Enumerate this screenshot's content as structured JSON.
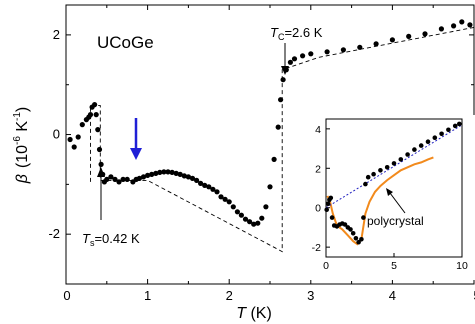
{
  "chart_data": [
    {
      "type": "scatter",
      "annotation_title": "UCoGe",
      "xlabel": {
        "var": "T",
        "unit": " (K)"
      },
      "ylabel": {
        "var": "β",
        "pre": "(10",
        "exp": "-6",
        "mid": " K",
        "exp2": "-1",
        "post": ")"
      },
      "xlim": [
        0,
        5
      ],
      "ylim": [
        -3,
        2.6
      ],
      "x_ticks": [
        0,
        1,
        2,
        3,
        4,
        5
      ],
      "x_tick_labels": [
        "0",
        "1",
        "2",
        "3",
        "4",
        "5"
      ],
      "y_ticks": [
        -2,
        0,
        2
      ],
      "y_tick_labels": [
        "-2",
        "0",
        "2"
      ],
      "annotations": {
        "tc": {
          "sym": "T",
          "sub": "C",
          "rest": "=2.6 K",
          "x": 2.6,
          "y": 1.35
        },
        "ts": {
          "sym": "T",
          "sub": "s",
          "rest": "=0.42 K",
          "x": 0.42,
          "y": -0.95
        },
        "blue_arrow_x": 0.8
      },
      "series": [
        {
          "points": [
            [
              0.05,
              -0.1
            ],
            [
              0.1,
              -0.25
            ],
            [
              0.15,
              -0.05
            ],
            [
              0.2,
              0.2
            ],
            [
              0.25,
              0.3
            ],
            [
              0.28,
              0.35
            ],
            [
              0.3,
              0.4
            ],
            [
              0.32,
              0.55
            ],
            [
              0.35,
              0.6
            ],
            [
              0.37,
              0.4
            ],
            [
              0.39,
              0.1
            ],
            [
              0.41,
              -0.3
            ],
            [
              0.43,
              -0.6
            ],
            [
              0.45,
              -0.8
            ],
            [
              0.47,
              -0.95
            ],
            [
              0.5,
              -0.9
            ],
            [
              0.55,
              -0.85
            ],
            [
              0.6,
              -0.9
            ],
            [
              0.65,
              -0.95
            ],
            [
              0.7,
              -0.9
            ],
            [
              0.75,
              -0.9
            ],
            [
              0.82,
              -0.95
            ],
            [
              0.86,
              -0.9
            ],
            [
              0.9,
              -0.88
            ],
            [
              0.95,
              -0.85
            ],
            [
              1.0,
              -0.82
            ],
            [
              1.05,
              -0.8
            ],
            [
              1.1,
              -0.78
            ],
            [
              1.15,
              -0.76
            ],
            [
              1.2,
              -0.75
            ],
            [
              1.25,
              -0.75
            ],
            [
              1.3,
              -0.76
            ],
            [
              1.35,
              -0.78
            ],
            [
              1.4,
              -0.8
            ],
            [
              1.45,
              -0.83
            ],
            [
              1.5,
              -0.85
            ],
            [
              1.55,
              -0.88
            ],
            [
              1.6,
              -0.92
            ],
            [
              1.65,
              -0.98
            ],
            [
              1.7,
              -1.02
            ],
            [
              1.75,
              -1.05
            ],
            [
              1.8,
              -1.1
            ],
            [
              1.85,
              -1.15
            ],
            [
              1.9,
              -1.25
            ],
            [
              1.95,
              -1.3
            ],
            [
              2.0,
              -1.35
            ],
            [
              2.05,
              -1.45
            ],
            [
              2.1,
              -1.55
            ],
            [
              2.15,
              -1.62
            ],
            [
              2.2,
              -1.7
            ],
            [
              2.25,
              -1.75
            ],
            [
              2.3,
              -1.8
            ],
            [
              2.35,
              -1.78
            ],
            [
              2.4,
              -1.68
            ],
            [
              2.45,
              -1.45
            ],
            [
              2.5,
              -1.05
            ],
            [
              2.55,
              -0.5
            ],
            [
              2.6,
              0.15
            ],
            [
              2.63,
              0.7
            ],
            [
              2.66,
              1.1
            ],
            [
              2.7,
              1.3
            ],
            [
              2.75,
              1.45
            ],
            [
              2.8,
              1.52
            ],
            [
              2.9,
              1.58
            ],
            [
              3.0,
              1.62
            ],
            [
              3.2,
              1.66
            ],
            [
              3.4,
              1.7
            ],
            [
              3.6,
              1.75
            ],
            [
              3.8,
              1.82
            ],
            [
              4.0,
              1.9
            ],
            [
              4.2,
              1.97
            ],
            [
              4.4,
              2.02
            ],
            [
              4.6,
              2.12
            ],
            [
              4.75,
              2.18
            ],
            [
              4.85,
              2.26
            ],
            [
              4.95,
              2.2
            ]
          ]
        }
      ],
      "dashed_guides": [
        [
          [
            0.3,
            -0.95
          ],
          [
            0.3,
            0.58
          ],
          [
            0.42,
            0.58
          ],
          [
            0.42,
            -0.92
          ],
          [
            1.0,
            -0.92
          ],
          [
            2.65,
            -2.35
          ],
          [
            2.65,
            1.3
          ],
          [
            3.1,
            1.55
          ],
          [
            5.0,
            2.15
          ]
        ]
      ]
    },
    {
      "type": "scatter",
      "role": "inset",
      "xlim": [
        0,
        10
      ],
      "ylim": [
        -2.5,
        4.5
      ],
      "x_ticks": [
        0,
        5,
        10
      ],
      "x_tick_labels": [
        "0",
        "5",
        "10"
      ],
      "y_ticks": [
        -2,
        0,
        2,
        4
      ],
      "y_tick_labels": [
        "-2",
        "0",
        "2",
        "4"
      ],
      "annotation_text": "polycrystal",
      "series": [
        {
          "kind": "points",
          "points": [
            [
              0.05,
              -0.1
            ],
            [
              0.15,
              0.2
            ],
            [
              0.25,
              0.4
            ],
            [
              0.35,
              0.5
            ],
            [
              0.45,
              -0.5
            ],
            [
              0.6,
              -0.9
            ],
            [
              0.8,
              -0.95
            ],
            [
              1.0,
              -0.85
            ],
            [
              1.2,
              -0.8
            ],
            [
              1.4,
              -0.85
            ],
            [
              1.6,
              -1.0
            ],
            [
              1.8,
              -1.1
            ],
            [
              2.0,
              -1.3
            ],
            [
              2.2,
              -1.55
            ],
            [
              2.4,
              -1.75
            ],
            [
              2.6,
              -1.6
            ],
            [
              2.75,
              -0.5
            ],
            [
              2.9,
              1.2
            ],
            [
              3.1,
              1.55
            ],
            [
              3.5,
              1.7
            ],
            [
              4.0,
              1.9
            ],
            [
              4.5,
              2.05
            ],
            [
              5.0,
              2.25
            ],
            [
              5.5,
              2.45
            ],
            [
              6.0,
              2.7
            ],
            [
              6.5,
              2.95
            ],
            [
              7.0,
              3.15
            ],
            [
              7.5,
              3.35
            ],
            [
              8.0,
              3.55
            ],
            [
              8.5,
              3.75
            ],
            [
              9.0,
              3.95
            ],
            [
              9.5,
              4.15
            ],
            [
              9.8,
              4.25
            ]
          ]
        },
        {
          "kind": "line",
          "color": "#f28a1c",
          "points": [
            [
              0.1,
              0.6
            ],
            [
              0.3,
              0.3
            ],
            [
              0.5,
              -0.3
            ],
            [
              0.8,
              -0.9
            ],
            [
              1.2,
              -1.1
            ],
            [
              1.6,
              -1.4
            ],
            [
              2.0,
              -1.7
            ],
            [
              2.3,
              -1.85
            ],
            [
              2.6,
              -1.6
            ],
            [
              2.9,
              -0.3
            ],
            [
              3.2,
              0.3
            ],
            [
              3.6,
              0.8
            ],
            [
              4.0,
              1.1
            ],
            [
              4.5,
              1.4
            ],
            [
              5.0,
              1.65
            ],
            [
              5.5,
              1.9
            ],
            [
              6.0,
              2.05
            ],
            [
              6.5,
              2.2
            ],
            [
              7.0,
              2.3
            ],
            [
              7.5,
              2.45
            ],
            [
              7.9,
              2.55
            ]
          ]
        },
        {
          "kind": "dashed-fit",
          "color": "#2020c0",
          "points": [
            [
              0,
              0.0
            ],
            [
              10,
              4.2
            ]
          ]
        }
      ]
    }
  ]
}
